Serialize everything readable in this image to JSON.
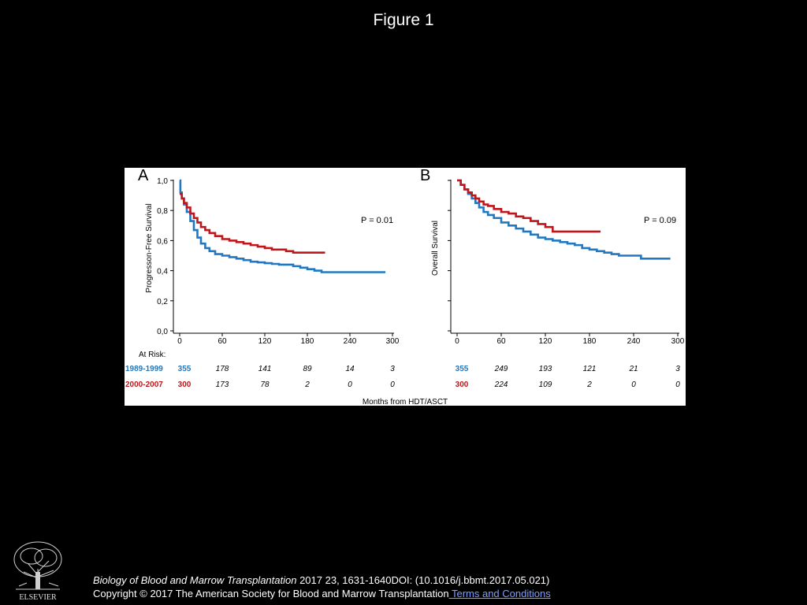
{
  "slide": {
    "title": "Figure 1"
  },
  "chart_data": [
    {
      "type": "line",
      "panel_label": "A",
      "ylabel": "Progresson-Free Survival",
      "xlabel": "",
      "xlim": [
        0,
        300
      ],
      "ylim": [
        0,
        1
      ],
      "x_ticks": [
        0,
        60,
        120,
        180,
        240,
        300
      ],
      "y_ticks": [
        0,
        0.2,
        0.4,
        0.6,
        0.8,
        1.0
      ],
      "y_tick_labels": [
        "0,0",
        "0,2",
        "0,4",
        "0,6",
        "0,8",
        "1,0"
      ],
      "annotation": "P = 0.01",
      "grid": false,
      "series": [
        {
          "name": "1989-1999",
          "color": "#1f78c1",
          "x": [
            0,
            1,
            3,
            6,
            10,
            15,
            20,
            25,
            30,
            36,
            42,
            50,
            60,
            70,
            80,
            90,
            100,
            110,
            120,
            130,
            140,
            150,
            160,
            170,
            180,
            190,
            200,
            210,
            230,
            250,
            270,
            290
          ],
          "y": [
            1.0,
            0.92,
            0.88,
            0.84,
            0.79,
            0.73,
            0.67,
            0.62,
            0.58,
            0.55,
            0.53,
            0.51,
            0.5,
            0.49,
            0.48,
            0.47,
            0.46,
            0.455,
            0.45,
            0.445,
            0.44,
            0.44,
            0.43,
            0.42,
            0.41,
            0.4,
            0.39,
            0.39,
            0.39,
            0.39,
            0.39,
            0.39
          ]
        },
        {
          "name": "2000-2007",
          "color": "#c0161b",
          "x": [
            0,
            3,
            6,
            10,
            15,
            20,
            25,
            30,
            36,
            42,
            50,
            60,
            70,
            80,
            90,
            100,
            110,
            120,
            130,
            140,
            150,
            160,
            170,
            180,
            190,
            200,
            205
          ],
          "y": [
            0.91,
            0.88,
            0.85,
            0.82,
            0.78,
            0.75,
            0.72,
            0.69,
            0.67,
            0.65,
            0.63,
            0.61,
            0.6,
            0.59,
            0.58,
            0.57,
            0.56,
            0.55,
            0.54,
            0.54,
            0.53,
            0.52,
            0.52,
            0.52,
            0.52,
            0.52,
            0.52
          ]
        }
      ],
      "at_risk": {
        "label": "At Risk:",
        "rows": [
          {
            "name": "1989-1999",
            "counts": [
              "355",
              "178",
              "141",
              "89",
              "14",
              "3"
            ]
          },
          {
            "name": "2000-2007",
            "counts": [
              "300",
              "173",
              "78",
              "2",
              "0",
              "0"
            ]
          }
        ]
      }
    },
    {
      "type": "line",
      "panel_label": "B",
      "ylabel": "Overall Survival",
      "xlabel": "",
      "xlim": [
        0,
        300
      ],
      "ylim": [
        0,
        1
      ],
      "x_ticks": [
        0,
        60,
        120,
        180,
        240,
        300
      ],
      "y_ticks": [
        0,
        0.2,
        0.4,
        0.6,
        0.8,
        1.0
      ],
      "annotation": "P = 0.09",
      "grid": false,
      "series": [
        {
          "name": "1989-1999",
          "color": "#1f78c1",
          "x": [
            0,
            5,
            10,
            15,
            20,
            25,
            30,
            36,
            42,
            50,
            60,
            70,
            80,
            90,
            100,
            110,
            120,
            130,
            140,
            150,
            160,
            170,
            180,
            190,
            200,
            210,
            220,
            230,
            240,
            250,
            260,
            270,
            280,
            290
          ],
          "y": [
            1.0,
            0.97,
            0.94,
            0.91,
            0.88,
            0.85,
            0.82,
            0.79,
            0.77,
            0.75,
            0.72,
            0.7,
            0.68,
            0.66,
            0.64,
            0.62,
            0.61,
            0.6,
            0.59,
            0.58,
            0.57,
            0.55,
            0.54,
            0.53,
            0.52,
            0.51,
            0.5,
            0.5,
            0.5,
            0.48,
            0.48,
            0.48,
            0.48,
            0.48
          ]
        },
        {
          "name": "2000-2007",
          "color": "#c0161b",
          "x": [
            0,
            5,
            10,
            15,
            20,
            25,
            30,
            36,
            42,
            50,
            60,
            70,
            80,
            90,
            100,
            110,
            120,
            130,
            140,
            150,
            160,
            170,
            180,
            195
          ],
          "y": [
            1.0,
            0.97,
            0.94,
            0.92,
            0.9,
            0.88,
            0.86,
            0.84,
            0.83,
            0.81,
            0.79,
            0.78,
            0.76,
            0.75,
            0.73,
            0.71,
            0.69,
            0.66,
            0.66,
            0.66,
            0.66,
            0.66,
            0.66,
            0.66
          ]
        }
      ],
      "at_risk": {
        "rows": [
          {
            "name": "1989-1999",
            "counts": [
              "355",
              "249",
              "193",
              "121",
              "21",
              "3"
            ]
          },
          {
            "name": "2000-2007",
            "counts": [
              "300",
              "224",
              "109",
              "2",
              "0",
              "0"
            ]
          }
        ]
      }
    }
  ],
  "figure": {
    "shared_xlabel": "Months from HDT/ASCT"
  },
  "footer": {
    "logo_text": "ELSEVIER",
    "journal": "Biology of Blood and Marrow Transplantation",
    "citation_rest": " 2017 23, 1631-1640DOI: (10.1016/j.bbmt.2017.05.021)",
    "copyright": "Copyright © 2017 The American Society for Blood and Marrow Transplantation",
    "terms_link": " Terms and Conditions"
  }
}
